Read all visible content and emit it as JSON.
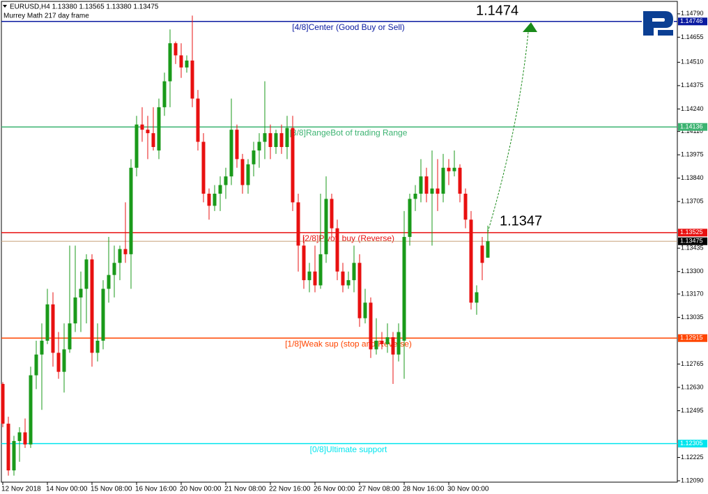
{
  "chart_data": {
    "type": "candlestick",
    "title": "EURUSD,H4  1.13380 1.13565 1.13380 1.13475",
    "subtitle": "Murrey Math 217 day frame",
    "categories": [
      "12 Nov 2018",
      null,
      null,
      null,
      null,
      null,
      null,
      null,
      "14 Nov 00:00",
      null,
      null,
      null,
      null,
      null,
      null,
      null,
      "15 Nov 08:00",
      null,
      null,
      null,
      null,
      null,
      null,
      null,
      "16 Nov 16:00",
      null,
      null,
      null,
      null,
      null,
      null,
      null,
      "20 Nov 00:00",
      null,
      null,
      null,
      null,
      null,
      null,
      null,
      "21 Nov 08:00",
      null,
      null,
      null,
      null,
      null,
      null,
      null,
      "22 Nov 16:00",
      null,
      null,
      null,
      null,
      null,
      null,
      null,
      "26 Nov 00:00",
      null,
      null,
      null,
      null,
      null,
      null,
      null,
      "27 Nov 08:00",
      null,
      null,
      null,
      null,
      null,
      null,
      null,
      "28 Nov 16:00",
      null,
      null,
      null,
      null,
      null,
      null,
      null,
      "30 Nov 00:00",
      null,
      null,
      null,
      null,
      null,
      null,
      null
    ],
    "open": [
      1.1265,
      1.1242,
      1.1215,
      1.1232,
      1.1237,
      1.123,
      1.127,
      1.1282,
      1.129,
      1.1311,
      1.1283,
      1.1272,
      1.1285,
      1.13,
      1.1315,
      1.132,
      1.1337,
      1.1283,
      1.129,
      1.132,
      1.1328,
      1.1335,
      1.1343,
      1.134,
      1.139,
      1.1415,
      1.1412,
      1.141,
      1.14,
      1.1425,
      1.144,
      1.1462,
      1.1455,
      1.1448,
      1.1452,
      1.143,
      1.1405,
      1.1375,
      1.1368,
      1.1375,
      1.138,
      1.1385,
      1.1412,
      1.1395,
      1.138,
      1.1392,
      1.14,
      1.1405,
      1.141,
      1.1402,
      1.141,
      1.1402,
      1.1413,
      1.137,
      1.1345,
      1.1325,
      1.133,
      1.1322,
      1.134,
      1.1372,
      1.1355,
      1.133,
      1.1322,
      1.1325,
      1.1335,
      1.1303,
      1.1312,
      1.1285,
      1.129,
      1.1288,
      1.1292,
      1.1282,
      1.129,
      1.135,
      1.1372,
      1.1375,
      1.1385,
      1.1375,
      1.1378,
      1.1375,
      1.139,
      1.1388,
      1.139,
      1.1375,
      1.136,
      1.1312,
      1.1345,
      1.1338
    ],
    "high": [
      1.1266,
      1.1246,
      1.1235,
      1.124,
      1.1245,
      1.1275,
      1.129,
      1.13,
      1.132,
      1.1318,
      1.1295,
      1.13,
      1.1345,
      1.1345,
      1.133,
      1.134,
      1.134,
      1.13,
      1.1325,
      1.135,
      1.1345,
      1.1345,
      1.137,
      1.1395,
      1.142,
      1.1425,
      1.142,
      1.1425,
      1.143,
      1.1445,
      1.147,
      1.1463,
      1.1462,
      1.1455,
      1.1478,
      1.1435,
      1.141,
      1.1378,
      1.138,
      1.1385,
      1.139,
      1.143,
      1.1415,
      1.1398,
      1.1395,
      1.1405,
      1.141,
      1.144,
      1.1415,
      1.1412,
      1.1415,
      1.142,
      1.142,
      1.1375,
      1.135,
      1.1335,
      1.1345,
      1.1375,
      1.1385,
      1.1375,
      1.136,
      1.1335,
      1.133,
      1.1345,
      1.134,
      1.132,
      1.1315,
      1.1303,
      1.1295,
      1.13,
      1.1295,
      1.13,
      1.1365,
      1.1375,
      1.138,
      1.1395,
      1.139,
      1.14,
      1.1395,
      1.1398,
      1.1395,
      1.14,
      1.1392,
      1.1378,
      1.1365,
      1.1322,
      1.135,
      1.13565
    ],
    "low": [
      1.124,
      1.1212,
      1.1212,
      1.122,
      1.1228,
      1.1228,
      1.1262,
      1.125,
      1.1288,
      1.1275,
      1.1268,
      1.126,
      1.1283,
      1.1295,
      1.1295,
      1.13,
      1.1275,
      1.1278,
      1.1285,
      1.1312,
      1.1315,
      1.1325,
      1.1335,
      1.132,
      1.1385,
      1.1405,
      1.1395,
      1.14,
      1.1395,
      1.142,
      1.1425,
      1.145,
      1.1442,
      1.1445,
      1.1425,
      1.14,
      1.137,
      1.136,
      1.1365,
      1.1365,
      1.1372,
      1.138,
      1.139,
      1.1375,
      1.1375,
      1.1385,
      1.139,
      1.1395,
      1.1395,
      1.1398,
      1.1398,
      1.1395,
      1.1365,
      1.133,
      1.132,
      1.1318,
      1.1318,
      1.132,
      1.1335,
      1.135,
      1.1325,
      1.1318,
      1.132,
      1.1318,
      1.1298,
      1.13,
      1.128,
      1.1282,
      1.1285,
      1.1283,
      1.1265,
      1.1278,
      1.1268,
      1.1345,
      1.1365,
      1.137,
      1.137,
      1.1345,
      1.1365,
      1.137,
      1.138,
      1.1385,
      1.137,
      1.1355,
      1.1308,
      1.1305,
      1.1325,
      1.1338
    ],
    "close": [
      1.1242,
      1.1215,
      1.1232,
      1.1237,
      1.123,
      1.127,
      1.1282,
      1.129,
      1.1311,
      1.1283,
      1.1272,
      1.1285,
      1.13,
      1.1315,
      1.132,
      1.1337,
      1.1283,
      1.129,
      1.132,
      1.1328,
      1.1335,
      1.1343,
      1.134,
      1.139,
      1.1415,
      1.1412,
      1.141,
      1.1402,
      1.1425,
      1.144,
      1.1462,
      1.1455,
      1.1448,
      1.1452,
      1.143,
      1.1405,
      1.1375,
      1.1368,
      1.1375,
      1.138,
      1.1385,
      1.1412,
      1.1395,
      1.138,
      1.1392,
      1.14,
      1.1405,
      1.141,
      1.1402,
      1.141,
      1.1402,
      1.1413,
      1.137,
      1.1345,
      1.1325,
      1.133,
      1.1322,
      1.134,
      1.1372,
      1.1355,
      1.133,
      1.1322,
      1.1325,
      1.1335,
      1.1303,
      1.1312,
      1.1285,
      1.129,
      1.1288,
      1.1292,
      1.1282,
      1.1295,
      1.135,
      1.1372,
      1.1375,
      1.1385,
      1.1375,
      1.1378,
      1.1375,
      1.139,
      1.1388,
      1.139,
      1.1375,
      1.136,
      1.1312,
      1.1318,
      1.1335,
      1.13475
    ],
    "bull_color": "#1a9a1a",
    "bear_color": "#e81010",
    "ylim": [
      1.12082,
      1.14862
    ],
    "yticks": [
      {
        "value": 1.1479,
        "label": "1.14790"
      },
      1.14655,
      {
        "value": 1.1451,
        "label": "1.14510"
      },
      1.14375,
      {
        "value": 1.1424,
        "label": "1.14240"
      },
      {
        "value": 1.1411,
        "label": "1.14110"
      },
      1.13975,
      {
        "value": 1.1384,
        "label": "1.13840"
      },
      1.13705,
      1.13435,
      {
        "value": 1.133,
        "label": "1.13300"
      },
      {
        "value": 1.1317,
        "label": "1.13170"
      },
      1.13035,
      1.12765,
      {
        "value": 1.1263,
        "label": "1.12630"
      },
      1.12495,
      1.12225,
      {
        "value": 1.1209,
        "label": "1.12090"
      }
    ],
    "levels": [
      {
        "label": "[4/8]Center (Good Buy or Sell)",
        "value": 1.14746,
        "color": "#0a1aa0"
      },
      {
        "label": "[3/8]RangeBot of trading Range",
        "value": 1.14136,
        "color": "#3cb371"
      },
      {
        "label": "[2/8]Pivot, buy (Reverse)",
        "value": 1.13525,
        "color": "#e81010"
      },
      {
        "label": "[1/8]Weak sup (stop and Reverse)",
        "value": 1.12915,
        "color": "#ff4500"
      },
      {
        "label": "[0/8]Ultimate support",
        "value": 1.12305,
        "color": "#00e5ee"
      }
    ],
    "annotations": [
      {
        "text": "1.1474"
      },
      {
        "text": "1.1347"
      }
    ]
  }
}
